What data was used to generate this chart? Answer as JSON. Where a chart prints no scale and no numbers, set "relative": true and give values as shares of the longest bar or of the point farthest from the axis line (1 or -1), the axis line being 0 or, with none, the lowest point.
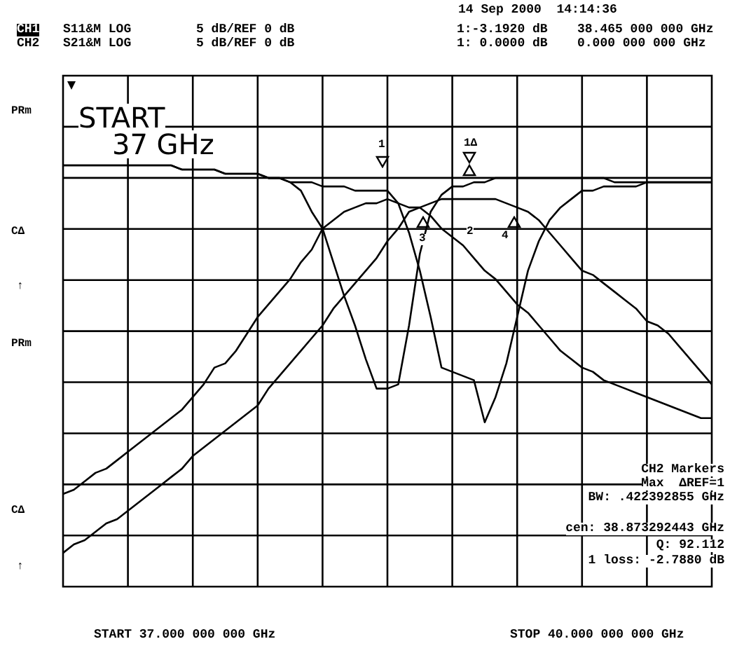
{
  "chart_data": {
    "type": "line",
    "relative": true,
    "grid": true,
    "legend": false,
    "categories": [
      null,
      null,
      null,
      null,
      null,
      null,
      null,
      null,
      null,
      null,
      null,
      null,
      null,
      null,
      null,
      null,
      null,
      null,
      null,
      null,
      null,
      null,
      null,
      null,
      null,
      null,
      null,
      null,
      null,
      null,
      null,
      null,
      null,
      null,
      null,
      null,
      null,
      null,
      null,
      null,
      null,
      null,
      null,
      null,
      null,
      null,
      null,
      null,
      null,
      null,
      null,
      null,
      null,
      null,
      null,
      null,
      null,
      null,
      null,
      null,
      null
    ],
    "series": [
      {
        "color": "#000000",
        "values": [
          1,
          1,
          1,
          1,
          1,
          1,
          1,
          1,
          1,
          1,
          1,
          0.99,
          0.99,
          0.99,
          0.99,
          0.98,
          0.98,
          0.98,
          0.98,
          0.97,
          0.97,
          0.96,
          0.94,
          0.89,
          0.85,
          0.77,
          0.69,
          0.62,
          0.54,
          0.47,
          0.47,
          0.48,
          0.62,
          0.79,
          0.89,
          0.93,
          0.95,
          0.95,
          0.96,
          0.96,
          0.97,
          0.97,
          0.97,
          0.97,
          0.97,
          0.97,
          0.97,
          0.97,
          0.97,
          0.97,
          0.97,
          0.96,
          0.96,
          0.96,
          0.96,
          0.96,
          0.96,
          0.96,
          0.96,
          0.96,
          0.96
        ]
      },
      {
        "color": "#000000",
        "values": [
          1,
          1,
          1,
          1,
          1,
          1,
          1,
          1,
          1,
          1,
          1,
          0.99,
          0.99,
          0.99,
          0.99,
          0.98,
          0.98,
          0.98,
          0.98,
          0.97,
          0.97,
          0.96,
          0.96,
          0.96,
          0.95,
          0.95,
          0.95,
          0.94,
          0.94,
          0.94,
          0.94,
          0.91,
          0.84,
          0.75,
          0.64,
          0.52,
          0.51,
          0.5,
          0.49,
          0.39,
          0.45,
          0.53,
          0.64,
          0.75,
          0.82,
          0.87,
          0.9,
          0.92,
          0.94,
          0.94,
          0.95,
          0.95,
          0.95,
          0.95,
          0.96,
          0.96,
          0.96,
          0.96,
          0.96,
          0.96,
          0.96
        ]
      },
      {
        "color": "#000000",
        "values": [
          0.22,
          0.23,
          0.25,
          0.27,
          0.28,
          0.3,
          0.32,
          0.34,
          0.36,
          0.38,
          0.4,
          0.42,
          0.45,
          0.48,
          0.52,
          0.53,
          0.56,
          0.6,
          0.64,
          0.67,
          0.7,
          0.73,
          0.77,
          0.8,
          0.85,
          0.87,
          0.89,
          0.9,
          0.91,
          0.91,
          0.92,
          0.91,
          0.9,
          0.9,
          0.88,
          0.85,
          0.83,
          0.81,
          0.78,
          0.75,
          0.73,
          0.7,
          0.67,
          0.65,
          0.62,
          0.59,
          0.56,
          0.54,
          0.52,
          0.51,
          0.49,
          0.48,
          0.47,
          0.46,
          0.45,
          0.44,
          0.43,
          0.42,
          0.41,
          0.4,
          0.4
        ]
      },
      {
        "color": "#000000",
        "values": [
          0.08,
          0.1,
          0.11,
          0.13,
          0.15,
          0.16,
          0.18,
          0.2,
          0.22,
          0.24,
          0.26,
          0.28,
          0.31,
          0.33,
          0.35,
          0.37,
          0.39,
          0.41,
          0.43,
          0.47,
          0.5,
          0.53,
          0.56,
          0.59,
          0.62,
          0.66,
          0.69,
          0.72,
          0.75,
          0.78,
          0.82,
          0.85,
          0.89,
          0.9,
          0.91,
          0.92,
          0.92,
          0.92,
          0.92,
          0.92,
          0.92,
          0.91,
          0.9,
          0.89,
          0.87,
          0.84,
          0.81,
          0.78,
          0.75,
          0.74,
          0.72,
          0.7,
          0.68,
          0.66,
          0.63,
          0.62,
          0.6,
          0.57,
          0.54,
          0.51,
          0.48
        ]
      }
    ],
    "annotations": [
      "14 Sep 2000  14:14:36",
      "CH1",
      "S11&M LOG",
      "5 dB/REF 0 dB",
      "1:-3.1920 dB",
      "38.465 000 000 GHz",
      "CH2",
      "S21&M LOG",
      "5 dB/REF 0 dB",
      "1: 0.0000 dB",
      "0.000 000 000 GHz",
      "START",
      "37 GHz",
      "PRm",
      "CΔ",
      "↑",
      "PRm",
      "CΔ",
      "↑",
      "1",
      "1Δ",
      "2",
      "3",
      "4",
      "CH2 Markers",
      "Max  ΔREF=1",
      "BW: .422392855 GHz",
      "cen: 38.873292443 GHz",
      "Q: 92.112",
      "1 loss: -2.7880 dB",
      "START 37.000 000 000 GHz",
      "STOP 40.000 000 000 GHz"
    ]
  }
}
